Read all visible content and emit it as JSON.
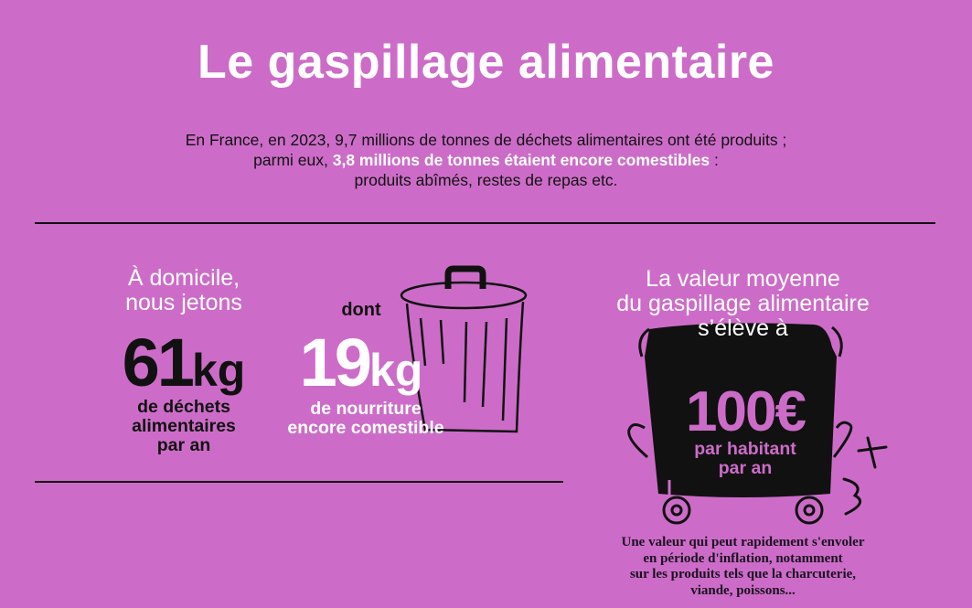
{
  "title": "Le gaspillage alimentaire",
  "intro": {
    "line1": "En France, en 2023, 9,7 millions de tonnes de déchets alimentaires ont été produits ;",
    "line2_prefix": "parmi eux, ",
    "line2_bold": "3,8 millions de tonnes étaient encore comestibles",
    "line2_suffix": " :",
    "line3": "produits abîmés, restes de repas etc."
  },
  "home": {
    "heading_line1": "À domicile,",
    "heading_line2": "nous jetons",
    "total_value": "61",
    "total_unit": "kg",
    "total_desc_line1": "de déchets",
    "total_desc_line2": "alimentaires",
    "total_desc_line3": "par an",
    "dont_label": "dont",
    "edible_value": "19",
    "edible_unit": "kg",
    "edible_desc_line1": "de nourriture",
    "edible_desc_line2": "encore comestible"
  },
  "value": {
    "heading_line1": "La valeur moyenne",
    "heading_line2": "du gaspillage alimentaire",
    "heading_line3": "s’élève à",
    "amount": "100€",
    "amount_desc_line1": "par habitant",
    "amount_desc_line2": "par an",
    "note_line1": "Une valeur qui peut rapidement s'envoler",
    "note_line2": "en période d'inflation, notamment",
    "note_line3": "sur les produits tels que la charcuterie,",
    "note_line4": "viande, poissons..."
  },
  "colors": {
    "background": "#cd6cc8",
    "text_dark": "#111111",
    "text_light": "#ffffff"
  },
  "icons": [
    "trash-can-icon",
    "wheelie-bin-icon",
    "plus-doodle-icon",
    "three-doodle-icon"
  ]
}
